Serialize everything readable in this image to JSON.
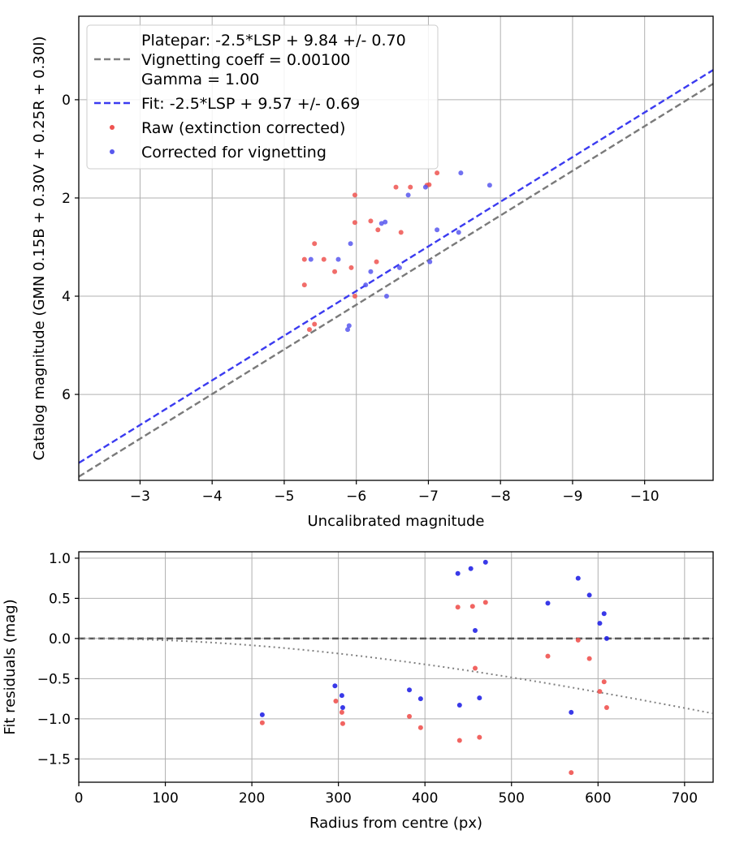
{
  "chart_data": [
    {
      "type": "scatter",
      "xlabel": "Uncalibrated magnitude",
      "ylabel": "Catalog magnitude (GMN 0.15B + 0.30V + 0.25R + 0.30I)",
      "xlim": [
        -2.15,
        -10.95
      ],
      "ylim": [
        7.75,
        -1.7
      ],
      "x_inverted": true,
      "y_inverted": true,
      "xticks": [
        -3,
        -4,
        -5,
        -6,
        -7,
        -8,
        -9,
        -10
      ],
      "xtick_labels": [
        "−3",
        "−4",
        "−5",
        "−6",
        "−7",
        "−8",
        "−9",
        "−10"
      ],
      "yticks": [
        0,
        2,
        4,
        6
      ],
      "ytick_labels": [
        "0",
        "2",
        "4",
        "6"
      ],
      "grid": true,
      "legend_position": "top-left",
      "legend": [
        {
          "label": "Platepar: -2.5*LSP + 9.84 +/- 0.70",
          "kind": "none"
        },
        {
          "label": "Vignetting coeff = 0.00100",
          "kind": "dashed",
          "color": "#808080"
        },
        {
          "label": "Gamma = 1.00",
          "kind": "none"
        },
        {
          "label": "Fit: -2.5*LSP + 9.57 +/- 0.69",
          "kind": "dashed",
          "color": "#3b3bf0"
        },
        {
          "label": "Raw (extinction corrected)",
          "kind": "dot",
          "color": "#ef5350"
        },
        {
          "label": "Corrected for vignetting",
          "kind": "dot",
          "color": "#5858ee"
        }
      ],
      "lines": [
        {
          "name": "Platepar",
          "style": "dashed",
          "color": "#7a7a7a",
          "x": [
            -2.15,
            -10.95
          ],
          "y": [
            7.675,
            -0.325
          ]
        },
        {
          "name": "Fit",
          "style": "dashed",
          "color": "#3b3bf0",
          "x": [
            -2.15,
            -10.95
          ],
          "y": [
            7.395,
            -0.605
          ]
        }
      ],
      "series": [
        {
          "name": "Raw (extinction corrected)",
          "color": "#ef5350",
          "points": [
            [
              -5.28,
              3.25
            ],
            [
              -5.28,
              3.77
            ],
            [
              -5.35,
              4.68
            ],
            [
              -5.42,
              4.57
            ],
            [
              -5.42,
              2.93
            ],
            [
              -5.55,
              3.25
            ],
            [
              -5.7,
              3.5
            ],
            [
              -5.93,
              3.42
            ],
            [
              -5.98,
              4.0
            ],
            [
              -5.98,
              1.94
            ],
            [
              -5.98,
              2.5
            ],
            [
              -6.2,
              2.47
            ],
            [
              -6.28,
              3.3
            ],
            [
              -6.3,
              2.65
            ],
            [
              -6.55,
              1.78
            ],
            [
              -6.62,
              2.7
            ],
            [
              -6.75,
              1.78
            ],
            [
              -6.98,
              1.74
            ],
            [
              -7.01,
              1.73
            ],
            [
              -7.12,
              1.49
            ]
          ]
        },
        {
          "name": "Corrected for vignetting",
          "color": "#5858ee",
          "points": [
            [
              -5.37,
              3.25
            ],
            [
              -5.75,
              3.25
            ],
            [
              -5.88,
              4.68
            ],
            [
              -5.9,
              4.6
            ],
            [
              -5.92,
              2.93
            ],
            [
              -6.13,
              3.77
            ],
            [
              -6.2,
              3.5
            ],
            [
              -6.35,
              2.52
            ],
            [
              -6.4,
              2.49
            ],
            [
              -6.42,
              4.0
            ],
            [
              -6.6,
              3.42
            ],
            [
              -6.72,
              1.94
            ],
            [
              -6.96,
              1.78
            ],
            [
              -7.02,
              3.3
            ],
            [
              -7.12,
              2.65
            ],
            [
              -7.42,
              2.7
            ],
            [
              -7.45,
              1.49
            ],
            [
              -7.85,
              1.74
            ]
          ]
        }
      ]
    },
    {
      "type": "scatter",
      "xlabel": "Radius from centre (px)",
      "ylabel": "Fit residuals (mag)",
      "xlim": [
        0,
        733
      ],
      "ylim": [
        -1.79,
        1.08
      ],
      "xticks": [
        0,
        100,
        200,
        300,
        400,
        500,
        600,
        700
      ],
      "xtick_labels": [
        "0",
        "100",
        "200",
        "300",
        "400",
        "500",
        "600",
        "700"
      ],
      "yticks": [
        1.0,
        0.5,
        0.0,
        -0.5,
        -1.0,
        -1.5
      ],
      "ytick_labels": [
        "1.0",
        "0.5",
        "0.0",
        "−0.5",
        "−1.0",
        "−1.5"
      ],
      "grid": true,
      "lines": [
        {
          "name": "zero",
          "style": "dashed",
          "color": "#595959",
          "x": [
            0,
            733
          ],
          "y": [
            0,
            0
          ]
        },
        {
          "name": "vignetting",
          "style": "dotted",
          "color": "#808080",
          "coeff": 0.001
        }
      ],
      "series": [
        {
          "name": "Raw (extinction corrected)",
          "color": "#ef5350",
          "points": [
            [
              212,
              -1.05
            ],
            [
              297,
              -0.78
            ],
            [
              304,
              -0.92
            ],
            [
              305,
              -1.06
            ],
            [
              382,
              -0.97
            ],
            [
              395,
              -1.11
            ],
            [
              438,
              0.39
            ],
            [
              440,
              -1.27
            ],
            [
              455,
              0.4
            ],
            [
              458,
              -0.37
            ],
            [
              463,
              -1.23
            ],
            [
              470,
              0.45
            ],
            [
              542,
              -0.22
            ],
            [
              569,
              -1.67
            ],
            [
              577,
              -0.02
            ],
            [
              590,
              -0.25
            ],
            [
              602,
              -0.66
            ],
            [
              607,
              -0.54
            ],
            [
              610,
              -0.86
            ]
          ]
        },
        {
          "name": "Corrected for vignetting",
          "color": "#2424e6",
          "points": [
            [
              212,
              -0.95
            ],
            [
              296,
              -0.59
            ],
            [
              304,
              -0.71
            ],
            [
              305,
              -0.86
            ],
            [
              382,
              -0.64
            ],
            [
              395,
              -0.75
            ],
            [
              438,
              0.81
            ],
            [
              440,
              -0.83
            ],
            [
              453,
              0.87
            ],
            [
              458,
              0.1
            ],
            [
              463,
              -0.74
            ],
            [
              470,
              0.95
            ],
            [
              542,
              0.44
            ],
            [
              569,
              -0.92
            ],
            [
              577,
              0.75
            ],
            [
              590,
              0.54
            ],
            [
              602,
              0.19
            ],
            [
              607,
              0.31
            ],
            [
              610,
              0.0
            ]
          ]
        }
      ]
    }
  ]
}
